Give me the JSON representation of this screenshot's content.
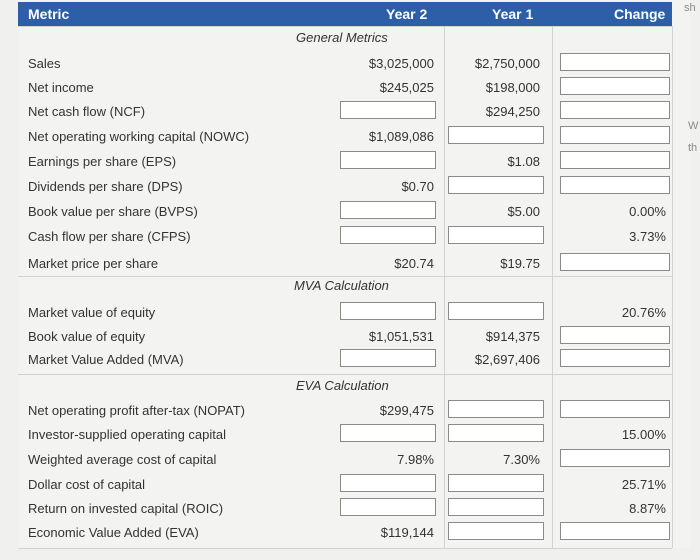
{
  "header": {
    "metric": "Metric",
    "year2": "Year 2",
    "year1": "Year 1",
    "change": "Change"
  },
  "edge": {
    "a": "sh",
    "b": "W",
    "c": "th"
  },
  "sections": {
    "general": "General Metrics",
    "mva": "MVA Calculation",
    "eva": "EVA Calculation"
  },
  "rows": {
    "sales": {
      "label": "Sales",
      "y2": "$3,025,000",
      "y1": "$2,750,000"
    },
    "net_income": {
      "label": "Net income",
      "y2": "$245,025",
      "y1": "$198,000"
    },
    "ncf": {
      "label": "Net cash flow (NCF)",
      "y1": "$294,250"
    },
    "nowc": {
      "label": "Net operating working capital (NOWC)",
      "y2": "$1,089,086"
    },
    "eps": {
      "label": "Earnings per share (EPS)",
      "y1": "$1.08"
    },
    "dps": {
      "label": "Dividends per share (DPS)",
      "y2": "$0.70"
    },
    "bvps": {
      "label": "Book value per share (BVPS)",
      "y1": "$5.00",
      "chg": "0.00%"
    },
    "cfps": {
      "label": "Cash flow per share (CFPS)",
      "chg": "3.73%"
    },
    "mps": {
      "label": "Market price per share",
      "y2": "$20.74",
      "y1": "$19.75"
    },
    "mve": {
      "label": "Market value of equity",
      "chg": "20.76%"
    },
    "bve": {
      "label": "Book value of equity",
      "y2": "$1,051,531",
      "y1": "$914,375"
    },
    "mva": {
      "label": "Market Value Added (MVA)",
      "y1": "$2,697,406"
    },
    "nopat": {
      "label": "Net operating profit after-tax (NOPAT)",
      "y2": "$299,475"
    },
    "isoc": {
      "label": "Investor-supplied operating capital",
      "chg": "15.00%"
    },
    "wacc": {
      "label": "Weighted average cost of capital",
      "y2": "7.98%",
      "y1": "7.30%"
    },
    "dcc": {
      "label": "Dollar cost of capital",
      "chg": "25.71%"
    },
    "roic": {
      "label": "Return on invested capital (ROIC)",
      "chg": "8.87%"
    },
    "eva": {
      "label": "Economic Value Added (EVA)",
      "y2": "$119,144"
    }
  }
}
